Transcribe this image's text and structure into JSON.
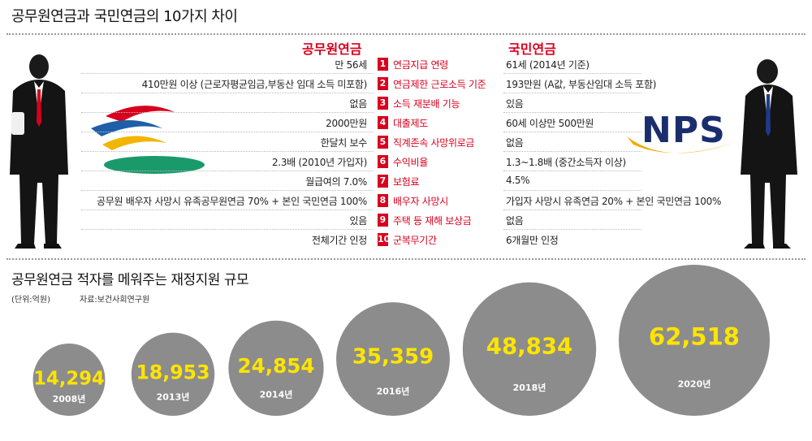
{
  "title": "공무원연금과 국민연금의 10가지 차이",
  "header_left": "공무원연금",
  "header_right": "국민연금",
  "nps_logo_text": "NPS",
  "comparison": [
    {
      "no": "1",
      "category": "연금지급 연령",
      "gov": "만 56세",
      "nps": "61세 (2014년 기준)"
    },
    {
      "no": "2",
      "category": "연금제한 근로소득 기준",
      "gov": "410만원 이상 (근로자평균임금,부동산 임대 소득 미포함)",
      "nps": "193만원 (A값, 부동산임대 소득 포함)"
    },
    {
      "no": "3",
      "category": "소득 재분배 기능",
      "gov": "없음",
      "nps": "있음"
    },
    {
      "no": "4",
      "category": "대출제도",
      "gov": "2000만원",
      "nps": "60세 이상만 500만원"
    },
    {
      "no": "5",
      "category": "직계존속 사망위로금",
      "gov": "한달치 보수",
      "nps": "없음"
    },
    {
      "no": "6",
      "category": "수익비율",
      "gov": "2.3배 (2010년 가입자)",
      "nps": "1.3~1.8배 (중간소득자 이상)"
    },
    {
      "no": "7",
      "category": "보험료",
      "gov": "월급여의 7.0%",
      "nps": "4.5%"
    },
    {
      "no": "8",
      "category": "배우자 사망시",
      "gov": "공무원 배우자 사망시 유족공무원연금 70% + 본인 국민연금 100%",
      "nps": "가입자 사망시 유족연금 20% + 본인 국민연금 100%"
    },
    {
      "no": "9",
      "category": "주택 등 재해 보상금",
      "gov": "있음",
      "nps": "없음"
    },
    {
      "no": "10",
      "category": "군복무기간",
      "gov": "전체기간 인정",
      "nps": "6개월만 인정"
    }
  ],
  "subtitle": "공무원연금 적자를 메워주는 재정지원 규모",
  "unit_label": "(단위:억원)",
  "source_label": "자료:보건사회연구원",
  "chart_data": {
    "type": "bubble",
    "title": "공무원연금 적자를 메워주는 재정지원 규모",
    "unit": "(단위:억원)",
    "source": "자료:보건사회연구원",
    "categories": [
      "2008년",
      "2013년",
      "2014년",
      "2016년",
      "2018년",
      "2020년"
    ],
    "values": [
      14294,
      18953,
      24854,
      35359,
      48834,
      62518
    ],
    "value_labels": [
      "14,294",
      "18,953",
      "24,854",
      "35,359",
      "48,834",
      "62,518"
    ],
    "bubble_color": "#8c8c8c",
    "value_color": "#ffe400",
    "year_color": "#ffffff"
  }
}
